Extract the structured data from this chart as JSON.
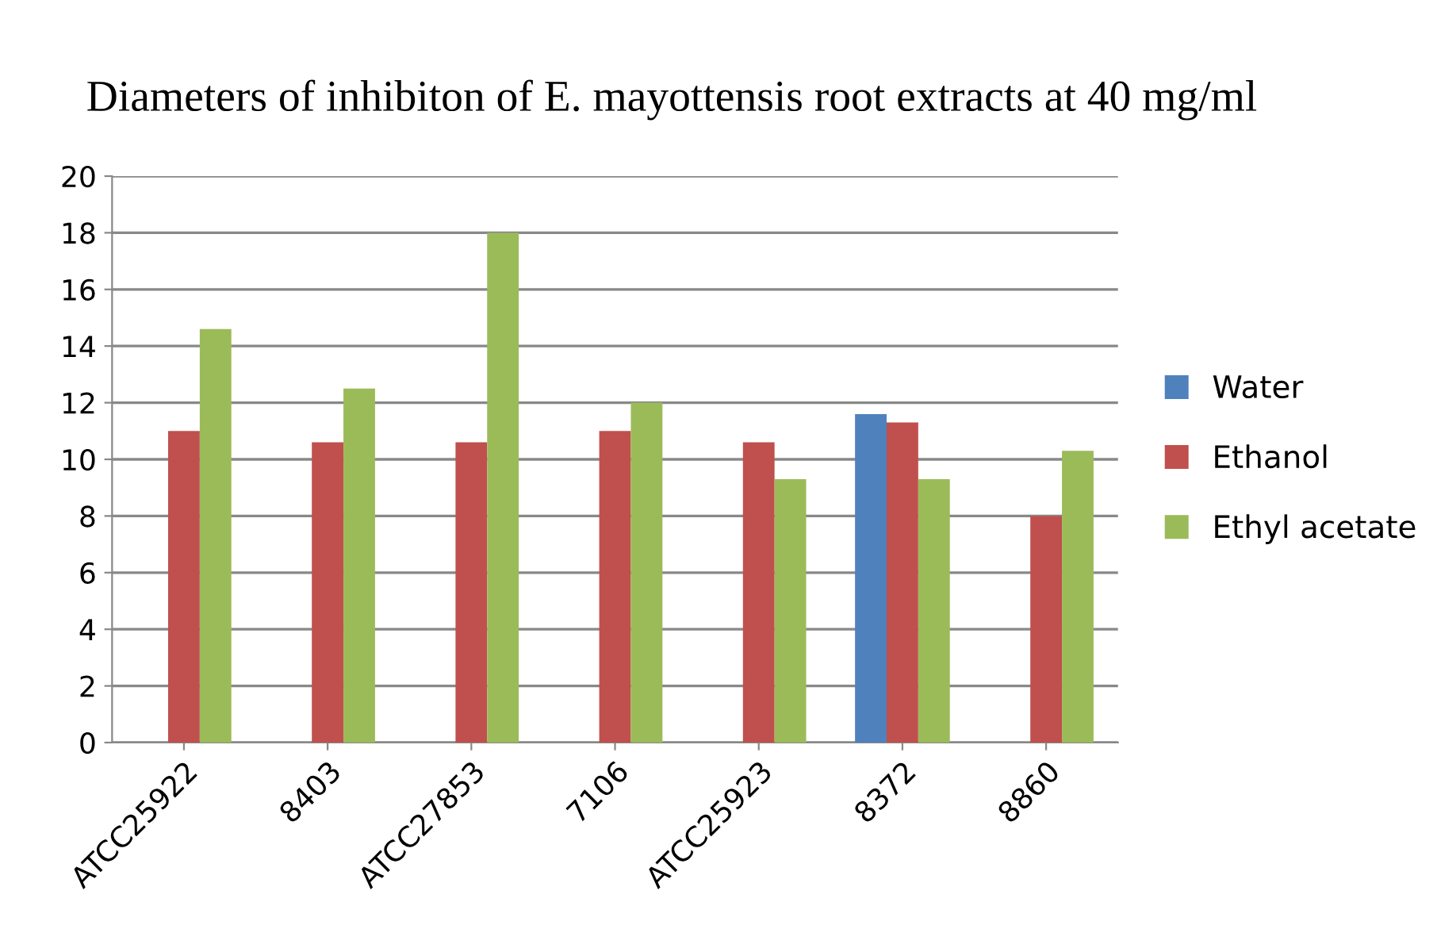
{
  "chart_data": {
    "type": "bar",
    "title": "Diameters of inhibiton of E. mayottensis root extracts at 40 mg/ml",
    "categories": [
      "ATCC25922",
      "8403",
      "ATCC27853",
      "7106",
      "ATCC25923",
      "8372",
      "8860"
    ],
    "series": [
      {
        "name": "Water",
        "color": "#4f81bd",
        "values": [
          null,
          null,
          null,
          null,
          null,
          11.6,
          null
        ]
      },
      {
        "name": "Ethanol",
        "color": "#c0504d",
        "values": [
          11,
          10.6,
          10.6,
          11,
          10.6,
          11.3,
          8
        ]
      },
      {
        "name": "Ethyl acetate",
        "color": "#9bbb59",
        "values": [
          14.6,
          12.5,
          18,
          12,
          9.3,
          9.3,
          10.3
        ]
      }
    ],
    "ylim": [
      0,
      20
    ],
    "yticks": [
      0,
      2,
      4,
      6,
      8,
      10,
      12,
      14,
      16,
      18,
      20
    ],
    "grid": "y",
    "legend": "right"
  }
}
